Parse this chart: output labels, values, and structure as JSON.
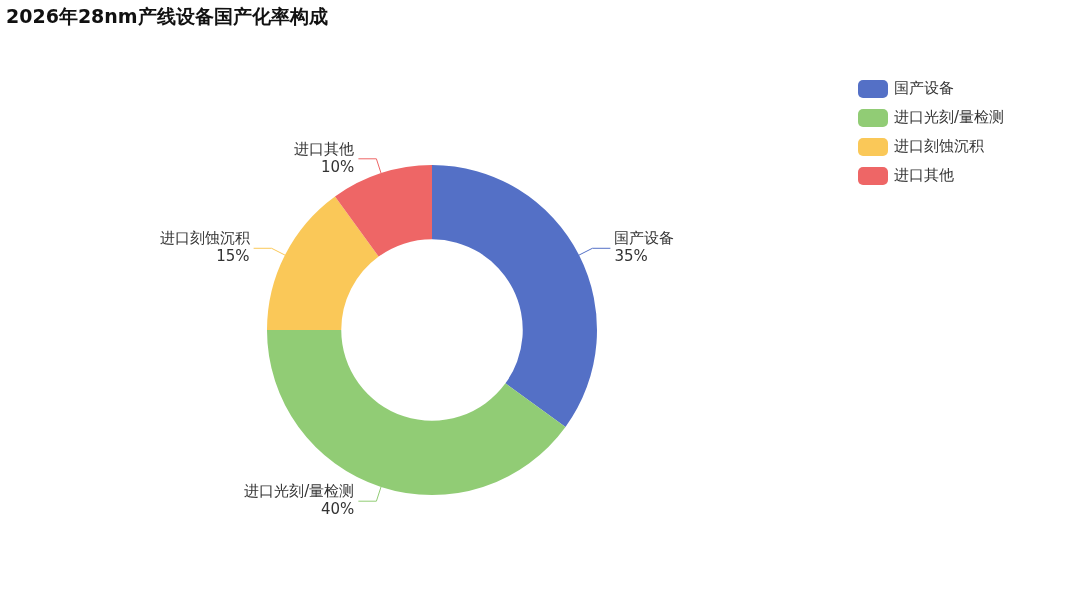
{
  "chart_data": {
    "type": "donut",
    "title": "2026年28nm产线设备国产化率构成",
    "categories": [
      "国产设备",
      "进口光刻/量检测",
      "进口刻蚀沉积",
      "进口其他"
    ],
    "values": [
      35,
      40,
      15,
      10
    ],
    "value_labels": [
      "35%",
      "40%",
      "15%",
      "10%"
    ],
    "colors": [
      "#5470c6",
      "#91cc75",
      "#fac858",
      "#ee6666"
    ],
    "legend": "top right"
  }
}
